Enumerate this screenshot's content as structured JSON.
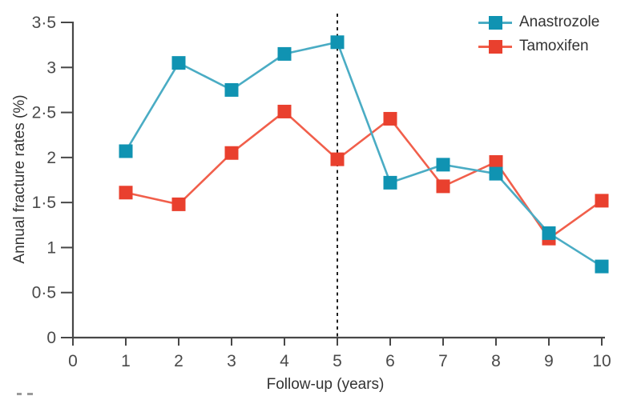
{
  "chart_data": {
    "type": "line",
    "title": "",
    "xlabel": "Follow-up (years)",
    "ylabel": "Annual fracture rates (%)",
    "x": [
      1,
      2,
      3,
      4,
      5,
      6,
      7,
      8,
      9,
      10
    ],
    "series": [
      {
        "name": "Anastrozole",
        "values": [
          2.07,
          3.05,
          2.75,
          3.15,
          3.28,
          1.72,
          1.92,
          1.82,
          1.16,
          0.79
        ],
        "marker_color": "#1093b2",
        "line_color": "#4aacc4"
      },
      {
        "name": "Tamoxifen",
        "values": [
          1.61,
          1.48,
          2.05,
          2.51,
          1.98,
          2.43,
          1.68,
          1.95,
          1.1,
          1.52
        ],
        "marker_color": "#e9402e",
        "line_color": "#f15f4b"
      }
    ],
    "xlim": [
      0,
      10
    ],
    "ylim": [
      0,
      3.5
    ],
    "x_ticks": [
      0,
      1,
      2,
      3,
      4,
      5,
      6,
      7,
      8,
      9,
      10
    ],
    "x_tick_labels": [
      "0",
      "1",
      "2",
      "3",
      "4",
      "5",
      "6",
      "7",
      "8",
      "9",
      "10"
    ],
    "y_ticks": [
      0,
      0.5,
      1,
      1.5,
      2,
      2.5,
      3,
      3.5
    ],
    "y_tick_labels": [
      "0",
      "0·5",
      "1",
      "1·5",
      "2",
      "2·5",
      "3",
      "3·5"
    ],
    "reference_line_x": 5,
    "marker": "square",
    "grid": false,
    "legend_position": "top-right",
    "axis_color": "#474747",
    "tick_text_color": "#4a4a4a",
    "reference_line_color": "#1f1f1f"
  }
}
